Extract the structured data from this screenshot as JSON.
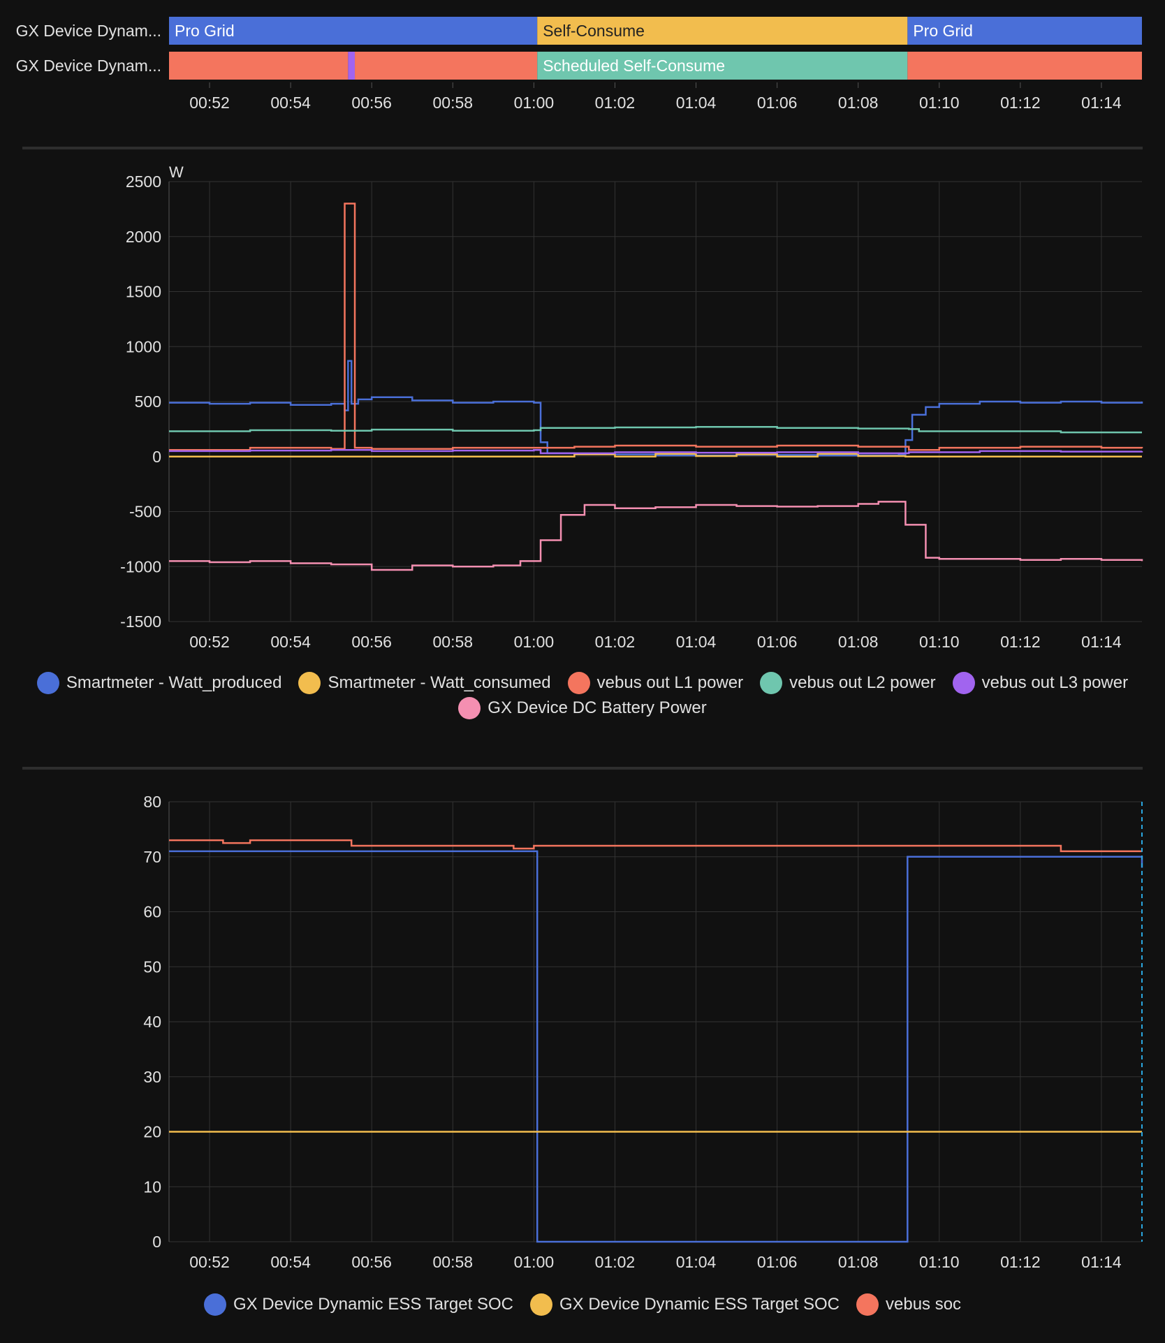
{
  "colors": {
    "blue": "#4a6fd8",
    "yellow": "#f2bd4e",
    "red": "#f4755e",
    "green": "#6fc6ae",
    "purple": "#a164ef",
    "pink": "#f48fb1",
    "background": "#111111",
    "grid": "#333333"
  },
  "chart_data": [
    {
      "type": "timeline",
      "time_range": [
        "00:51",
        "01:15"
      ],
      "x_ticks": [
        "00:52",
        "00:54",
        "00:56",
        "00:58",
        "01:00",
        "01:02",
        "01:04",
        "01:06",
        "01:08",
        "01:10",
        "01:12",
        "01:14"
      ],
      "rows": [
        {
          "label": "GX Device Dynam...",
          "segments": [
            {
              "start": "00:51",
              "end": "01:00:05",
              "label": "Pro Grid",
              "color": "#4a6fd8"
            },
            {
              "start": "01:00:05",
              "end": "01:09:13",
              "label": "Self-Consume",
              "color": "#f2bd4e"
            },
            {
              "start": "01:09:13",
              "end": "01:15",
              "label": "Pro Grid",
              "color": "#4a6fd8"
            }
          ]
        },
        {
          "label": "GX Device Dynam...",
          "segments": [
            {
              "start": "00:51",
              "end": "00:55:25",
              "label": "",
              "color": "#f4755e"
            },
            {
              "start": "00:55:25",
              "end": "00:55:35",
              "label": "",
              "color": "#a164ef"
            },
            {
              "start": "00:55:35",
              "end": "01:00:05",
              "label": "",
              "color": "#f4755e"
            },
            {
              "start": "01:00:05",
              "end": "01:09:13",
              "label": "Scheduled Self-Consume",
              "color": "#6fc6ae"
            },
            {
              "start": "01:09:13",
              "end": "01:15",
              "label": "",
              "color": "#f4755e"
            }
          ]
        }
      ]
    },
    {
      "type": "line",
      "step": true,
      "unit": "W",
      "ylim": [
        -1500,
        2500
      ],
      "y_ticks": [
        2500,
        2000,
        1500,
        1000,
        500,
        0,
        -500,
        -1000,
        -1500
      ],
      "x_ticks": [
        "00:52",
        "00:54",
        "00:56",
        "00:58",
        "01:00",
        "01:02",
        "01:04",
        "01:06",
        "01:08",
        "01:10",
        "01:12",
        "01:14"
      ],
      "grid": true,
      "legend_position": "bottom",
      "series": [
        {
          "name": "Smartmeter - Watt_produced",
          "color": "#4a6fd8",
          "points": [
            [
              "00:51",
              490
            ],
            [
              "00:52",
              480
            ],
            [
              "00:53",
              490
            ],
            [
              "00:54",
              470
            ],
            [
              "00:55",
              480
            ],
            [
              "00:55:20",
              420
            ],
            [
              "00:55:25",
              870
            ],
            [
              "00:55:30",
              480
            ],
            [
              "00:55:40",
              520
            ],
            [
              "00:56",
              540
            ],
            [
              "00:57",
              510
            ],
            [
              "00:58",
              490
            ],
            [
              "00:59",
              500
            ],
            [
              "01:00",
              490
            ],
            [
              "01:00:10",
              130
            ],
            [
              "01:00:20",
              30
            ],
            [
              "01:01",
              20
            ],
            [
              "01:03",
              10
            ],
            [
              "01:05",
              15
            ],
            [
              "01:07",
              10
            ],
            [
              "01:09",
              20
            ],
            [
              "01:09:10",
              150
            ],
            [
              "01:09:20",
              380
            ],
            [
              "01:09:40",
              450
            ],
            [
              "01:10",
              480
            ],
            [
              "01:11",
              500
            ],
            [
              "01:12",
              490
            ],
            [
              "01:13",
              500
            ],
            [
              "01:14",
              490
            ],
            [
              "01:15",
              500
            ]
          ]
        },
        {
          "name": "Smartmeter - Watt_consumed",
          "color": "#f2bd4e",
          "points": [
            [
              "00:51",
              0
            ],
            [
              "01:00:10",
              0
            ],
            [
              "01:01",
              20
            ],
            [
              "01:02",
              0
            ],
            [
              "01:03",
              25
            ],
            [
              "01:04",
              5
            ],
            [
              "01:05",
              20
            ],
            [
              "01:06",
              0
            ],
            [
              "01:07",
              25
            ],
            [
              "01:08",
              5
            ],
            [
              "01:09:10",
              0
            ],
            [
              "01:15",
              0
            ]
          ]
        },
        {
          "name": "vebus out L1 power",
          "color": "#f4755e",
          "points": [
            [
              "00:51",
              60
            ],
            [
              "00:53",
              80
            ],
            [
              "00:55",
              70
            ],
            [
              "00:55:20",
              2300
            ],
            [
              "00:55:35",
              80
            ],
            [
              "00:56",
              70
            ],
            [
              "00:58",
              80
            ],
            [
              "01:00",
              80
            ],
            [
              "01:01",
              90
            ],
            [
              "01:02",
              100
            ],
            [
              "01:04",
              90
            ],
            [
              "01:06",
              100
            ],
            [
              "01:08",
              90
            ],
            [
              "01:09:15",
              60
            ],
            [
              "01:10",
              80
            ],
            [
              "01:12",
              90
            ],
            [
              "01:14",
              80
            ],
            [
              "01:15",
              75
            ]
          ]
        },
        {
          "name": "vebus out L2 power",
          "color": "#6fc6ae",
          "points": [
            [
              "00:51",
              230
            ],
            [
              "00:53",
              240
            ],
            [
              "00:55",
              235
            ],
            [
              "00:56",
              245
            ],
            [
              "00:58",
              235
            ],
            [
              "01:00",
              240
            ],
            [
              "01:00:10",
              260
            ],
            [
              "01:02",
              265
            ],
            [
              "01:04",
              270
            ],
            [
              "01:06",
              260
            ],
            [
              "01:08",
              255
            ],
            [
              "01:09:15",
              250
            ],
            [
              "01:09:30",
              230
            ],
            [
              "01:11",
              230
            ],
            [
              "01:13",
              220
            ],
            [
              "01:15",
              220
            ]
          ]
        },
        {
          "name": "vebus out L3 power",
          "color": "#a164ef",
          "points": [
            [
              "00:51",
              50
            ],
            [
              "00:53",
              55
            ],
            [
              "00:55",
              60
            ],
            [
              "00:56",
              50
            ],
            [
              "00:58",
              55
            ],
            [
              "01:00",
              60
            ],
            [
              "01:00:10",
              30
            ],
            [
              "01:02",
              40
            ],
            [
              "01:04",
              35
            ],
            [
              "01:06",
              40
            ],
            [
              "01:08",
              30
            ],
            [
              "01:09:15",
              40
            ],
            [
              "01:11",
              50
            ],
            [
              "01:13",
              45
            ],
            [
              "01:15",
              50
            ]
          ]
        },
        {
          "name": "GX Device DC Battery Power",
          "color": "#f48fb1",
          "points": [
            [
              "00:51",
              -950
            ],
            [
              "00:52",
              -960
            ],
            [
              "00:53",
              -950
            ],
            [
              "00:54",
              -970
            ],
            [
              "00:55",
              -980
            ],
            [
              "00:56",
              -1030
            ],
            [
              "00:57",
              -990
            ],
            [
              "00:58",
              -1000
            ],
            [
              "00:59",
              -990
            ],
            [
              "00:59:40",
              -950
            ],
            [
              "01:00:10",
              -760
            ],
            [
              "01:00:40",
              -530
            ],
            [
              "01:01",
              -530
            ],
            [
              "01:01:15",
              -440
            ],
            [
              "01:02",
              -470
            ],
            [
              "01:03",
              -460
            ],
            [
              "01:04",
              -440
            ],
            [
              "01:05",
              -450
            ],
            [
              "01:06",
              -455
            ],
            [
              "01:07",
              -450
            ],
            [
              "01:08",
              -430
            ],
            [
              "01:08:30",
              -410
            ],
            [
              "01:09:10",
              -620
            ],
            [
              "01:09:40",
              -920
            ],
            [
              "01:10",
              -930
            ],
            [
              "01:11",
              -930
            ],
            [
              "01:12",
              -940
            ],
            [
              "01:13",
              -930
            ],
            [
              "01:14",
              -940
            ],
            [
              "01:15",
              -950
            ]
          ]
        }
      ]
    },
    {
      "type": "line",
      "step": true,
      "ylim": [
        0,
        80
      ],
      "y_ticks": [
        80,
        70,
        60,
        50,
        40,
        30,
        20,
        10,
        0
      ],
      "x_ticks": [
        "00:52",
        "00:54",
        "00:56",
        "00:58",
        "01:00",
        "01:02",
        "01:04",
        "01:06",
        "01:08",
        "01:10",
        "01:12",
        "01:14"
      ],
      "grid": true,
      "legend_position": "bottom",
      "series": [
        {
          "name": "GX Device Dynamic ESS Target SOC",
          "color": "#4a6fd8",
          "points": [
            [
              "00:51",
              71
            ],
            [
              "01:00:05",
              71
            ],
            [
              "01:00:05",
              0
            ],
            [
              "01:09:13",
              0
            ],
            [
              "01:09:13",
              70
            ],
            [
              "01:15",
              70
            ],
            [
              "01:15",
              68
            ]
          ]
        },
        {
          "name": "GX Device Dynamic ESS Target SOC",
          "color": "#f2bd4e",
          "points": [
            [
              "00:51",
              20
            ],
            [
              "01:15",
              20
            ]
          ]
        },
        {
          "name": "vebus soc",
          "color": "#f4755e",
          "points": [
            [
              "00:51",
              73
            ],
            [
              "00:52:20",
              72.5
            ],
            [
              "00:53",
              73
            ],
            [
              "00:55:30",
              72
            ],
            [
              "00:59:30",
              71.5
            ],
            [
              "01:00",
              72
            ],
            [
              "01:13",
              71
            ],
            [
              "01:15",
              71
            ]
          ]
        }
      ]
    }
  ]
}
